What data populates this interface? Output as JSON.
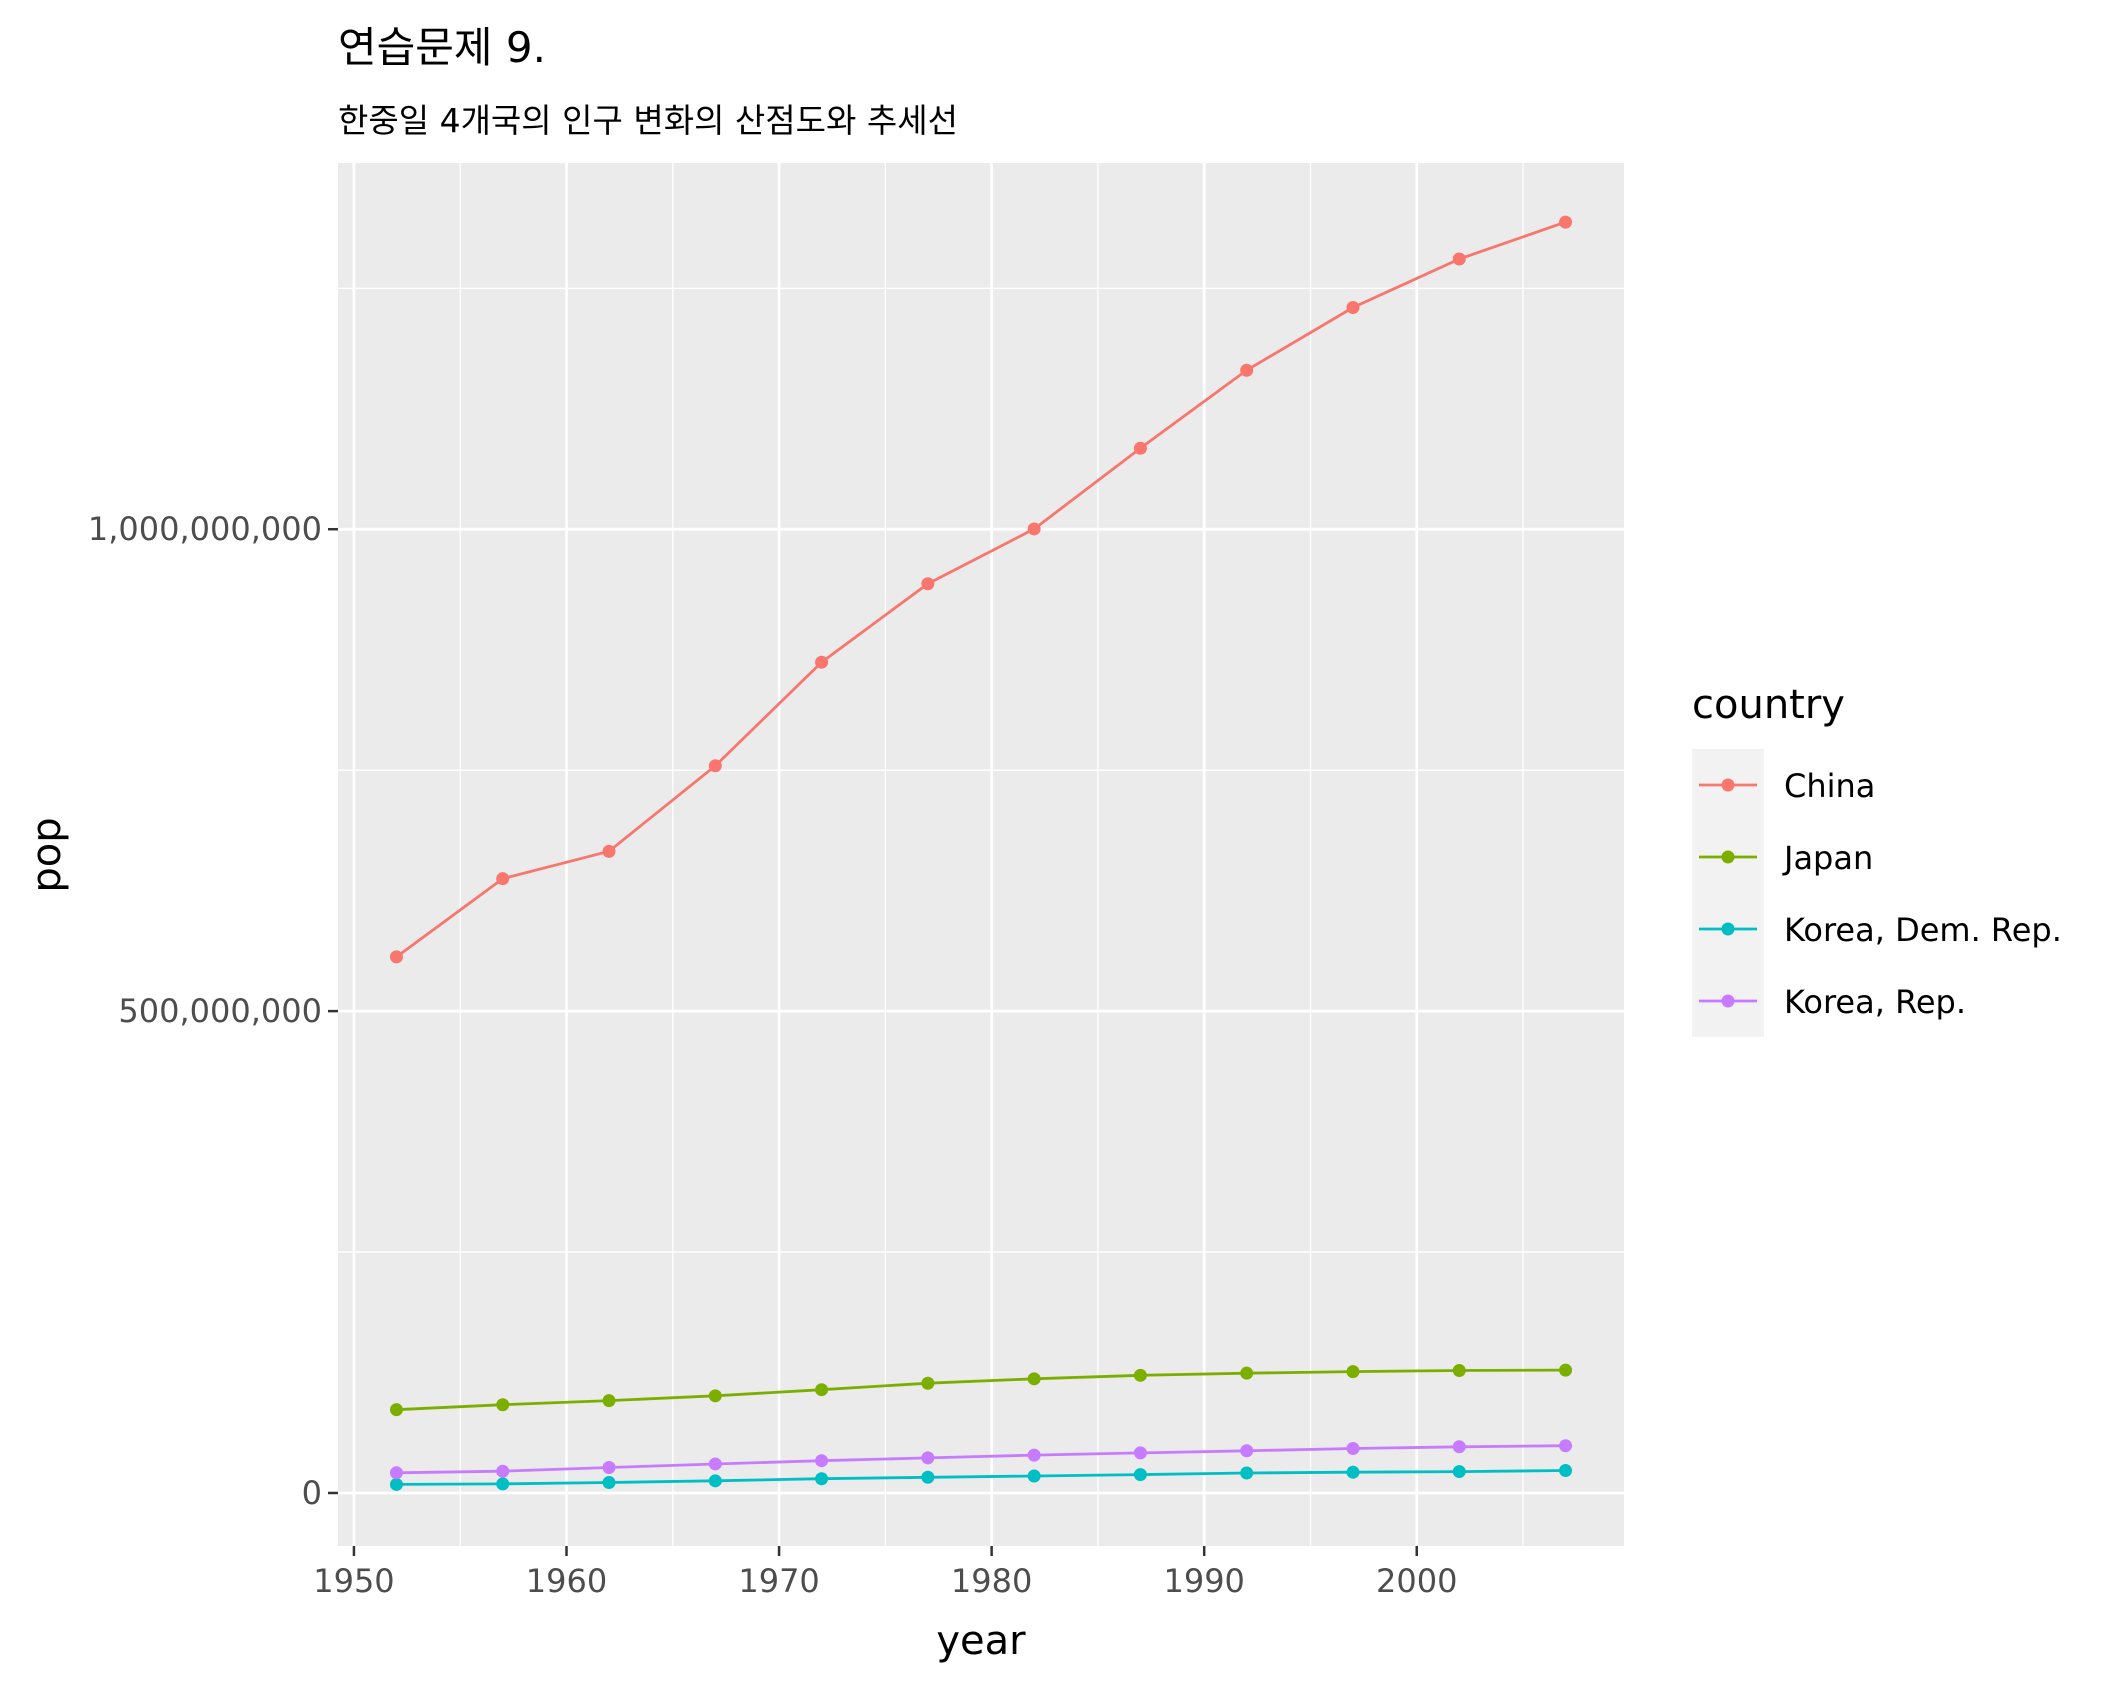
{
  "chart_data": {
    "type": "line",
    "title": "연습문제 9.",
    "subtitle": "한중일 4개국의 인구 변화의 산점도와 추세선",
    "xlabel": "year",
    "ylabel": "pop",
    "xlim": [
      1949.25,
      2009.75
    ],
    "ylim": [
      -55000000,
      1380000000
    ],
    "x_ticks": [
      1950,
      1960,
      1970,
      1980,
      1990,
      2000
    ],
    "x_tick_labels": [
      "1950",
      "1960",
      "1970",
      "1980",
      "1990",
      "2000"
    ],
    "y_ticks": [
      0,
      500000000,
      1000000000
    ],
    "y_tick_labels": [
      "0",
      "500,000,000",
      "1,000,000,000"
    ],
    "grid": true,
    "legend": {
      "title": "country",
      "position": "right"
    },
    "x": [
      1952,
      1957,
      1962,
      1967,
      1972,
      1977,
      1982,
      1987,
      1992,
      1997,
      2002,
      2007
    ],
    "series": [
      {
        "name": "China",
        "color": "#F8766D",
        "values": [
          556263527,
          637408000,
          665770000,
          754550000,
          862030000,
          943455000,
          1000281000,
          1084035000,
          1164970000,
          1230075000,
          1280400000,
          1318683096
        ]
      },
      {
        "name": "Japan",
        "color": "#7CAE00",
        "values": [
          86459025,
          91563009,
          95831757,
          100825279,
          107188273,
          113872473,
          118454974,
          122091325,
          124329269,
          125956499,
          127065841,
          127467972
        ]
      },
      {
        "name": "Korea, Dem. Rep.",
        "color": "#00BFC4",
        "values": [
          8865488,
          9411381,
          10917494,
          12617009,
          14781241,
          16325320,
          17647518,
          19067554,
          20711375,
          21585105,
          22215365,
          23301725
        ]
      },
      {
        "name": "Korea, Rep.",
        "color": "#C77CFF",
        "values": [
          20947571,
          22611552,
          26420307,
          30131000,
          33505000,
          36436000,
          39326000,
          41622000,
          43805450,
          46173816,
          47969150,
          49044790
        ]
      }
    ]
  }
}
